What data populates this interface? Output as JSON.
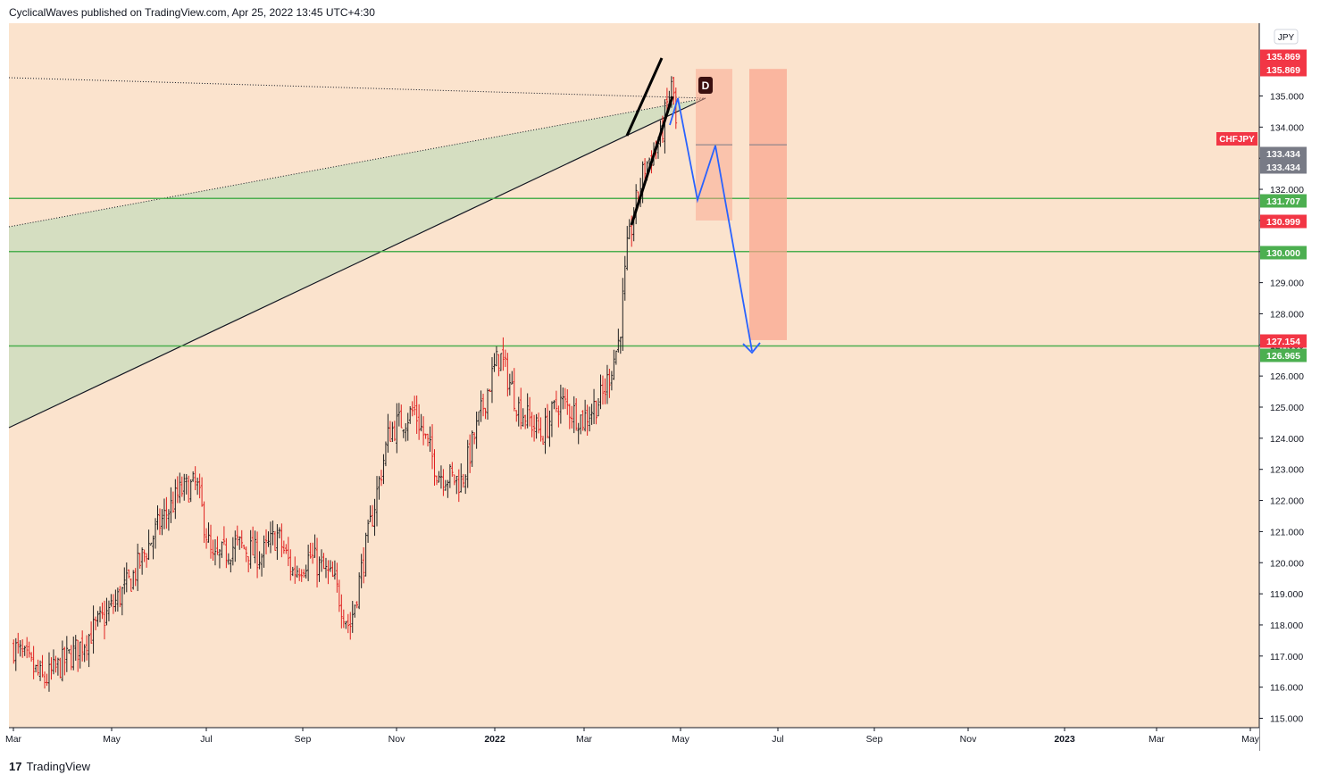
{
  "header": {
    "publisher": "CyclicalWaves published on TradingView.com, Apr 25, 2022 13:45 UTC+4:30"
  },
  "footer": {
    "logo_glyph": "17",
    "brand": "TradingView"
  },
  "colors": {
    "background": "#fbe3cd",
    "up_candle": "#1f1f1f",
    "down_candle": "#e0201f",
    "support_line": "#4caf50",
    "projection": "#2962ff",
    "target_box": "#f9a38c",
    "red_tag": "#f23645",
    "gray_tag": "#787b86",
    "green_tag": "#4caf50",
    "triangle_fill": "#c8dcbc"
  },
  "chart_data": {
    "type": "candlestick",
    "symbol": "CHFJPY",
    "currency": "JPY",
    "x_ticks": [
      "Mar",
      "May",
      "Jul",
      "Sep",
      "Nov",
      "2022",
      "Mar",
      "May",
      "Jul",
      "Sep",
      "Nov",
      "2023",
      "Mar",
      "May"
    ],
    "ylim": [
      114.8,
      136.3
    ],
    "y_ticks": [
      "115.000",
      "116.000",
      "117.000",
      "118.000",
      "119.000",
      "120.000",
      "121.000",
      "122.000",
      "123.000",
      "124.000",
      "125.000",
      "126.000",
      "127.000",
      "128.000",
      "129.000",
      "130.000",
      "131.000",
      "132.000",
      "133.000",
      "134.000",
      "135.000"
    ],
    "top_partial_label": "1",
    "price_tags": [
      {
        "value": 135.869,
        "label": "135.869",
        "kind": "red"
      },
      {
        "value": 135.869,
        "label": "135.869",
        "kind": "red"
      },
      {
        "value": 133.434,
        "label": "133.434",
        "kind": "gray"
      },
      {
        "value": 133.434,
        "label": "133.434",
        "kind": "gray"
      },
      {
        "value": 131.707,
        "label": "131.707",
        "kind": "green"
      },
      {
        "value": 130.999,
        "label": "130.999",
        "kind": "red"
      },
      {
        "value": 130.0,
        "label": "130.000",
        "kind": "green"
      },
      {
        "value": 127.154,
        "label": "127.154",
        "kind": "red"
      },
      {
        "value": 126.965,
        "label": "126.965",
        "kind": "green"
      }
    ],
    "horizontal_levels": [
      131.707,
      130.0,
      126.965
    ],
    "pattern_marker": "D",
    "anchors": [
      {
        "date": "2021-03-01",
        "close": 117.3
      },
      {
        "date": "2021-03-20",
        "close": 116.2
      },
      {
        "date": "2021-04-10",
        "close": 117.2
      },
      {
        "date": "2021-04-30",
        "close": 118.4
      },
      {
        "date": "2021-05-15",
        "close": 119.5
      },
      {
        "date": "2021-06-01",
        "close": 121.2
      },
      {
        "date": "2021-06-15",
        "close": 122.3
      },
      {
        "date": "2021-06-25",
        "close": 122.5
      },
      {
        "date": "2021-07-05",
        "close": 120.0
      },
      {
        "date": "2021-07-20",
        "close": 120.6
      },
      {
        "date": "2021-08-05",
        "close": 120.2
      },
      {
        "date": "2021-08-15",
        "close": 120.9
      },
      {
        "date": "2021-08-25",
        "close": 119.7
      },
      {
        "date": "2021-09-05",
        "close": 120.2
      },
      {
        "date": "2021-09-20",
        "close": 119.4
      },
      {
        "date": "2021-09-30",
        "close": 117.9
      },
      {
        "date": "2021-10-10",
        "close": 120.4
      },
      {
        "date": "2021-10-25",
        "close": 124.2
      },
      {
        "date": "2021-11-10",
        "close": 124.9
      },
      {
        "date": "2021-11-25",
        "close": 122.9
      },
      {
        "date": "2021-12-10",
        "close": 122.6
      },
      {
        "date": "2021-12-28",
        "close": 125.8
      },
      {
        "date": "2022-01-03",
        "close": 126.7
      },
      {
        "date": "2022-01-15",
        "close": 125.0
      },
      {
        "date": "2022-01-30",
        "close": 124.1
      },
      {
        "date": "2022-02-10",
        "close": 125.2
      },
      {
        "date": "2022-02-25",
        "close": 124.6
      },
      {
        "date": "2022-03-10",
        "close": 125.4
      },
      {
        "date": "2022-03-20",
        "close": 127.2
      },
      {
        "date": "2022-03-25",
        "close": 130.0
      },
      {
        "date": "2022-03-30",
        "close": 131.4
      },
      {
        "date": "2022-04-05",
        "close": 132.7
      },
      {
        "date": "2022-04-15",
        "close": 133.6
      },
      {
        "date": "2022-04-20",
        "close": 134.9
      },
      {
        "date": "2022-04-23",
        "close": 135.4
      },
      {
        "date": "2022-04-25",
        "close": 133.9
      }
    ]
  }
}
